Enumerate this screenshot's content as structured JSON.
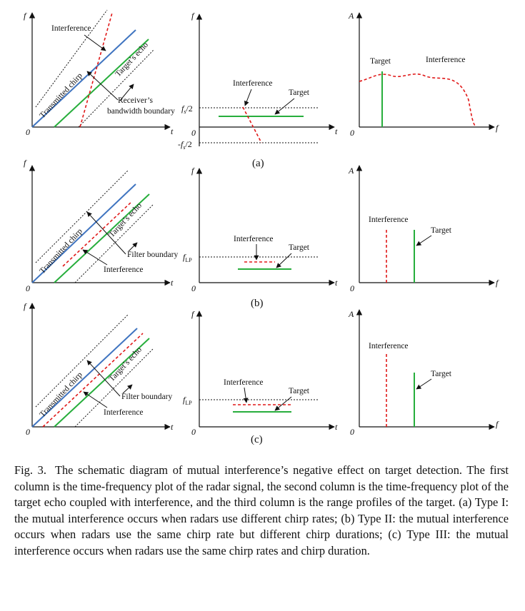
{
  "figure": {
    "axis_f": "f",
    "axis_t": "t",
    "axis_A": "A",
    "origin": "0",
    "fs_half": "f",
    "fs_half_sub": "s",
    "fs_half_suffix": "/2",
    "neg_sign": "-",
    "f_lp": "f",
    "f_lp_sub": "LP",
    "transmitted_chirp": "Transmitted chirp",
    "targets_echo": "Target’s echo",
    "interference": "Interference",
    "target": "Target",
    "receivers": "Receiver’s",
    "bandwidth_boundary": "bandwidth boundary",
    "filter_boundary": "Filter boundary",
    "label_a": "(a)",
    "label_b": "(b)",
    "label_c": "(c)"
  },
  "caption": {
    "label": "Fig. 3.",
    "text": "The schematic diagram of mutual interference’s negative effect on target detection. The first column is the time-frequency plot of the radar signal, the second column is the time-frequency plot of the target echo coupled with interference, and the third column is the range profiles of the target. (a) Type I: the mutual interference occurs when radars use different chirp rates; (b) Type II: the mutual interference occurs when radars use the same chirp rate but different chirp durations; (c) Type III: the mutual interference occurs when radars use the same chirp rates and chirp duration."
  },
  "colors": {
    "transmitted": "#3f74c0",
    "echo": "#27ae3c",
    "interference": "#e01818"
  }
}
